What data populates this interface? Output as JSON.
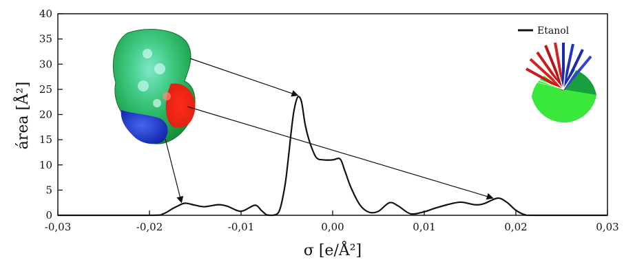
{
  "chart_data": {
    "type": "line",
    "title": "",
    "xlabel": "σ [e/Å²]",
    "ylabel": "área [Å²]",
    "xlim": [
      -0.03,
      0.03
    ],
    "ylim": [
      0,
      40
    ],
    "x_ticks": [
      -0.03,
      -0.02,
      -0.01,
      0.0,
      0.01,
      0.02,
      0.03
    ],
    "x_tick_labels": [
      "-0,03",
      "-0,02",
      "-0,01",
      "0,00",
      "0,01",
      "0,02",
      "0,03"
    ],
    "y_ticks": [
      0,
      5,
      10,
      15,
      20,
      25,
      30,
      35,
      40
    ],
    "y_tick_labels": [
      "0",
      "5",
      "10",
      "15",
      "20",
      "25",
      "30",
      "35",
      "40"
    ],
    "grid": false,
    "legend_position": "top-right",
    "series": [
      {
        "name": "Etanol",
        "color": "#111111",
        "points": [
          [
            -0.03,
            0.0
          ],
          [
            -0.02,
            0.0
          ],
          [
            -0.0185,
            0.3
          ],
          [
            -0.0175,
            1.3
          ],
          [
            -0.0165,
            2.2
          ],
          [
            -0.016,
            2.4
          ],
          [
            -0.015,
            2.0
          ],
          [
            -0.014,
            1.7
          ],
          [
            -0.0125,
            2.1
          ],
          [
            -0.0115,
            1.8
          ],
          [
            -0.01,
            0.8
          ],
          [
            -0.0085,
            2.0
          ],
          [
            -0.0078,
            1.0
          ],
          [
            -0.0072,
            0.1
          ],
          [
            -0.0065,
            0.0
          ],
          [
            -0.0058,
            1.0
          ],
          [
            -0.0052,
            6.0
          ],
          [
            -0.0048,
            12.0
          ],
          [
            -0.0045,
            17.0
          ],
          [
            -0.0042,
            21.0
          ],
          [
            -0.0038,
            23.5
          ],
          [
            -0.0034,
            22.5
          ],
          [
            -0.003,
            18.0
          ],
          [
            -0.0025,
            14.5
          ],
          [
            -0.0018,
            11.5
          ],
          [
            -0.001,
            11.0
          ],
          [
            0.0,
            11.0
          ],
          [
            0.0008,
            11.2
          ],
          [
            0.0013,
            9.0
          ],
          [
            0.002,
            5.5
          ],
          [
            0.003,
            2.0
          ],
          [
            0.004,
            0.6
          ],
          [
            0.005,
            0.8
          ],
          [
            0.0062,
            2.5
          ],
          [
            0.0072,
            1.8
          ],
          [
            0.0085,
            0.3
          ],
          [
            0.01,
            0.7
          ],
          [
            0.011,
            1.3
          ],
          [
            0.0125,
            2.1
          ],
          [
            0.014,
            2.6
          ],
          [
            0.0155,
            2.1
          ],
          [
            0.0165,
            2.3
          ],
          [
            0.018,
            3.4
          ],
          [
            0.019,
            2.6
          ],
          [
            0.02,
            1.0
          ],
          [
            0.021,
            0.1
          ],
          [
            0.022,
            0.0
          ],
          [
            0.03,
            0.0
          ]
        ]
      }
    ],
    "annotations": [
      {
        "type": "arrow",
        "to_x": -0.0165,
        "to_y": 2.5
      },
      {
        "type": "arrow",
        "to_x": -0.0038,
        "to_y": 23.8
      },
      {
        "type": "arrow",
        "to_x": 0.0175,
        "to_y": 3.4
      }
    ]
  }
}
